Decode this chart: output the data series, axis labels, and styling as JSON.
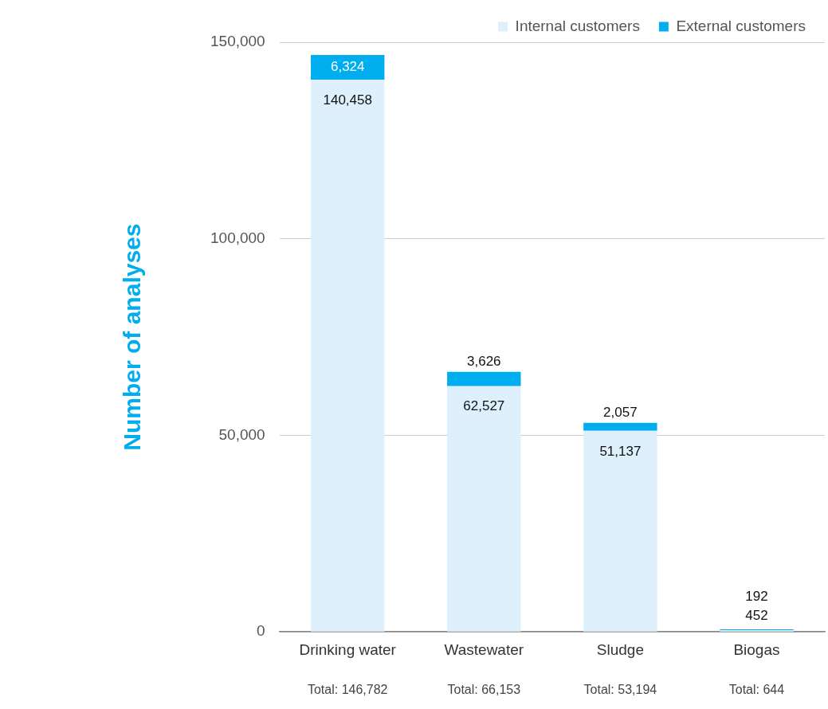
{
  "chart_data": {
    "type": "bar",
    "stacked": true,
    "ylabel": "Number of analyses",
    "categories": [
      "Drinking water",
      "Wastewater",
      "Sludge",
      "Biogas"
    ],
    "series": [
      {
        "name": "Internal customers",
        "color": "#ddf0fc",
        "values": [
          140458,
          62527,
          51137,
          452
        ],
        "value_labels": [
          "140,458",
          "62,527",
          "51,137",
          "452"
        ]
      },
      {
        "name": "External customers",
        "color": "#00aeef",
        "values": [
          6324,
          3626,
          2057,
          192
        ],
        "value_labels": [
          "6,324",
          "3,626",
          "2,057",
          "192"
        ]
      }
    ],
    "annotations": [
      "Total: 146,782",
      "Total: 66,153",
      "Total: 53,194",
      "Total: 644"
    ],
    "ylim": [
      0,
      150000
    ],
    "yticks": [
      {
        "value": 0,
        "label": "0"
      },
      {
        "value": 50000,
        "label": "50,000"
      },
      {
        "value": 100000,
        "label": "100,000"
      },
      {
        "value": 150000,
        "label": "150,000"
      }
    ],
    "grid": "y",
    "legend": "top"
  }
}
